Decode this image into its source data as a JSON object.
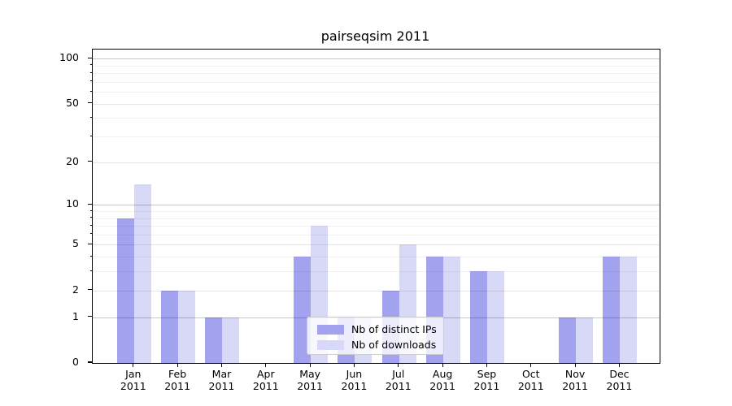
{
  "chart_data": {
    "type": "bar",
    "title": "pairseqsim 2011",
    "year": "2011",
    "categories": [
      "Jan",
      "Feb",
      "Mar",
      "Apr",
      "May",
      "Jun",
      "Jul",
      "Aug",
      "Sep",
      "Oct",
      "Nov",
      "Dec"
    ],
    "series": [
      {
        "name": "Nb of distinct IPs",
        "color": "#a2a2ee",
        "values": [
          8,
          2,
          1,
          0,
          4,
          1,
          2,
          4,
          3,
          0,
          1,
          4
        ]
      },
      {
        "name": "Nb of downloads",
        "color": "#d8d8f7",
        "values": [
          14,
          2,
          1,
          0,
          7,
          1,
          5,
          4,
          3,
          0,
          1,
          4
        ]
      }
    ],
    "xlabel": "",
    "ylabel": "",
    "ylim": [
      0,
      100
    ],
    "yscale": "log1p",
    "y_ticks_labeled": [
      0,
      1,
      2,
      5,
      10,
      20,
      50,
      100
    ],
    "y_ticks_major": [
      1,
      10,
      100
    ],
    "y_ticks_mid": [
      2,
      5,
      20,
      50
    ],
    "y_ticks_minor": [
      3,
      4,
      6,
      7,
      8,
      9,
      30,
      40,
      60,
      70,
      80,
      90
    ],
    "grid": true,
    "legend_position": "lower center",
    "colors": {
      "spine": "#000000",
      "grid_major": "rgba(0,0,0,0.22)",
      "grid_mid": "rgba(0,0,0,0.10)",
      "grid_minor": "rgba(0,0,0,0.05)",
      "legend_border": "#cccccc"
    }
  }
}
